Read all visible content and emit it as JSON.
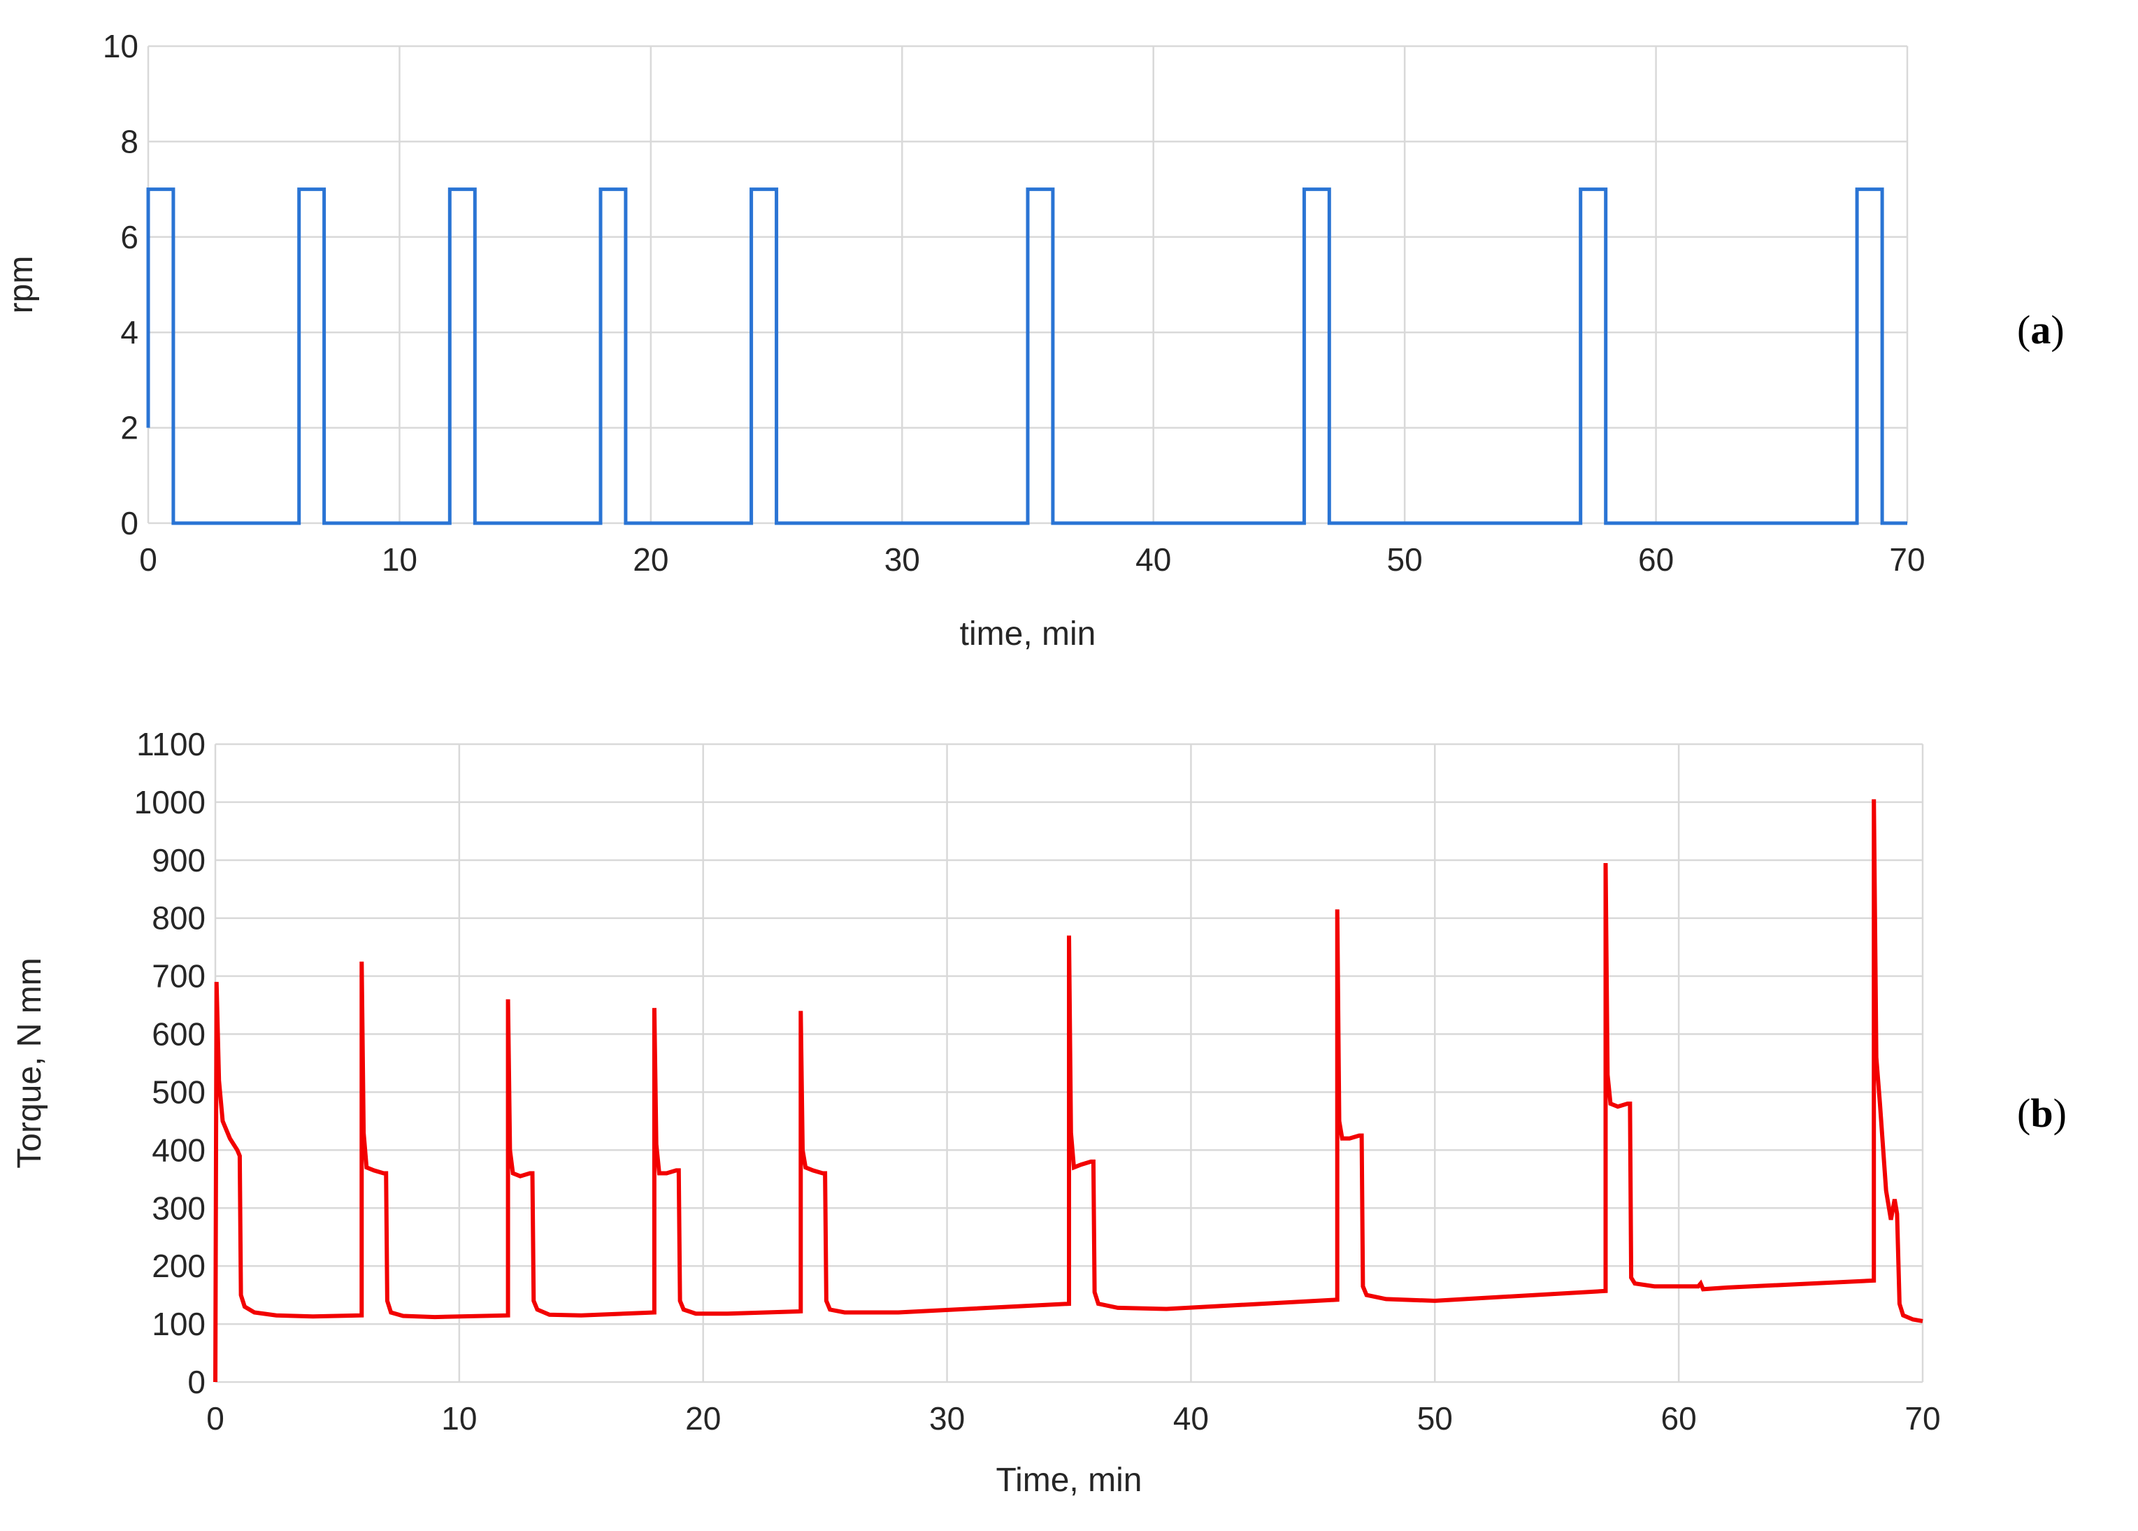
{
  "panel_labels": {
    "a": "a",
    "b": "b"
  },
  "colors": {
    "rpm_line": "#2a74d4",
    "torque_line": "#f20000",
    "grid": "#d9d9d9",
    "text": "#262626"
  },
  "chart_data": [
    {
      "id": "a",
      "type": "line",
      "title": "",
      "xlabel": "time, min",
      "ylabel": "rpm",
      "xlim": [
        0,
        70
      ],
      "ylim": [
        0,
        10
      ],
      "xticks": [
        0,
        10,
        20,
        30,
        40,
        50,
        60,
        70
      ],
      "yticks": [
        0,
        2,
        4,
        6,
        8,
        10
      ],
      "grid": true,
      "legend": "none",
      "series": [
        {
          "x": [
            0,
            0,
            1,
            1,
            6,
            6,
            7,
            7,
            12,
            12,
            13,
            13,
            18,
            18,
            19,
            19,
            24,
            24,
            25,
            25,
            35,
            35,
            36,
            36,
            46,
            46,
            47,
            47,
            57,
            57,
            58,
            58,
            68,
            68,
            69,
            69,
            70
          ],
          "values": [
            2,
            7,
            7,
            0,
            0,
            7,
            7,
            0,
            0,
            7,
            7,
            0,
            0,
            7,
            7,
            0,
            0,
            7,
            7,
            0,
            0,
            7,
            7,
            0,
            0,
            7,
            7,
            0,
            0,
            7,
            7,
            0,
            0,
            7,
            7,
            0,
            0
          ]
        }
      ]
    },
    {
      "id": "b",
      "type": "line",
      "title": "",
      "xlabel": "Time, min",
      "ylabel": "Torque, N mm",
      "xlim": [
        0,
        70
      ],
      "ylim": [
        0,
        1100
      ],
      "xticks": [
        0,
        10,
        20,
        30,
        40,
        50,
        60,
        70
      ],
      "yticks": [
        0,
        100,
        200,
        300,
        400,
        500,
        600,
        700,
        800,
        900,
        1000,
        1100
      ],
      "grid": true,
      "legend": "none",
      "series": [
        {
          "x": [
            0,
            0.05,
            0.15,
            0.3,
            0.6,
            0.9,
            1.0,
            1.05,
            1.2,
            1.6,
            2.5,
            4,
            6.0,
            6.0,
            6.08,
            6.2,
            6.5,
            6.9,
            7.0,
            7.05,
            7.2,
            7.7,
            9,
            12.0,
            12.0,
            12.08,
            12.2,
            12.5,
            12.9,
            13.0,
            13.05,
            13.2,
            13.7,
            15,
            18.0,
            18.0,
            18.08,
            18.2,
            18.5,
            18.9,
            19.0,
            19.05,
            19.2,
            19.7,
            21,
            24.0,
            24.0,
            24.08,
            24.2,
            24.5,
            24.9,
            25.0,
            25.05,
            25.2,
            25.8,
            28,
            35.0,
            35.0,
            35.08,
            35.2,
            35.5,
            35.9,
            36.0,
            36.05,
            36.2,
            37,
            39,
            46.0,
            46.0,
            46.08,
            46.2,
            46.5,
            46.9,
            47.0,
            47.05,
            47.2,
            48,
            50,
            57.0,
            57.0,
            57.08,
            57.2,
            57.5,
            57.9,
            58.0,
            58.05,
            58.2,
            59,
            60.8,
            60.9,
            61.0,
            62,
            68.0,
            68.0,
            68.1,
            68.25,
            68.5,
            68.7,
            68.85,
            68.95,
            69.05,
            69.2,
            69.6,
            70
          ],
          "values": [
            0,
            690,
            520,
            450,
            420,
            400,
            390,
            150,
            130,
            120,
            115,
            113,
            115,
            725,
            430,
            370,
            365,
            360,
            360,
            140,
            120,
            114,
            112,
            115,
            660,
            400,
            360,
            355,
            360,
            360,
            140,
            125,
            116,
            115,
            120,
            645,
            410,
            360,
            360,
            365,
            365,
            140,
            125,
            118,
            118,
            122,
            640,
            400,
            370,
            365,
            360,
            360,
            140,
            125,
            120,
            120,
            135,
            770,
            430,
            370,
            375,
            380,
            380,
            155,
            135,
            128,
            126,
            142,
            815,
            450,
            420,
            420,
            425,
            425,
            165,
            150,
            143,
            140,
            157,
            895,
            530,
            480,
            475,
            480,
            480,
            180,
            170,
            165,
            165,
            170,
            160,
            163,
            175,
            1005,
            560,
            480,
            330,
            280,
            315,
            290,
            135,
            115,
            108,
            105
          ]
        }
      ]
    }
  ]
}
